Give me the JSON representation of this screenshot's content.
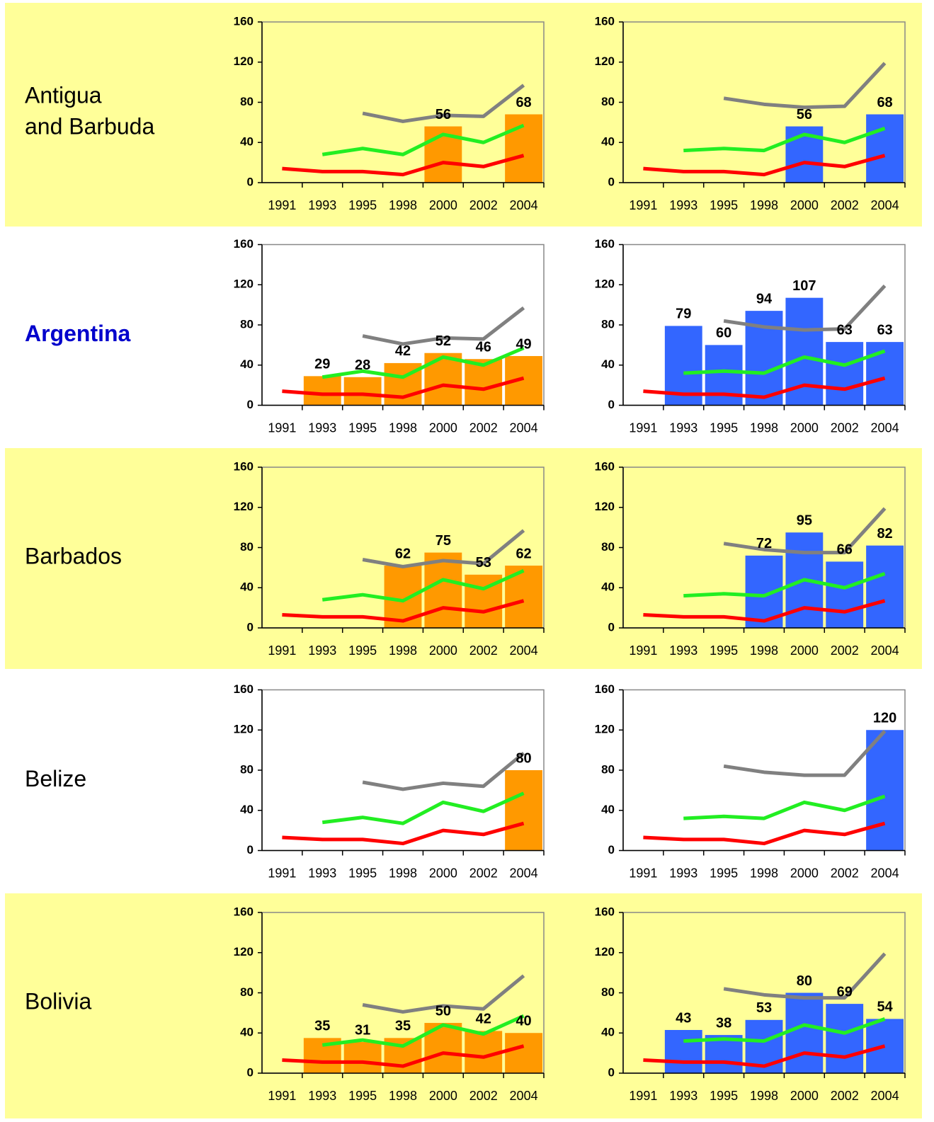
{
  "rows": [
    {
      "label": [
        "Antigua",
        "and Barbuda"
      ],
      "color": "#000000"
    },
    {
      "label": [
        "Argentina"
      ],
      "color": "#0000cc"
    },
    {
      "label": [
        "Barbados"
      ],
      "color": "#000000"
    },
    {
      "label": [
        "Belize"
      ],
      "color": "#000000"
    },
    {
      "label": [
        "Bolivia"
      ],
      "color": "#000000"
    }
  ],
  "chart_data": [
    {
      "type": "bar",
      "categories": [
        "1991",
        "1993",
        "1995",
        "1998",
        "2000",
        "2002",
        "2004"
      ],
      "values": [
        null,
        null,
        null,
        null,
        56,
        null,
        68
      ],
      "color": "#ff9900",
      "ylim": [
        0,
        160
      ],
      "yticks": [
        0,
        40,
        80,
        120,
        160
      ],
      "series": [
        {
          "color": "#808080",
          "values": [
            null,
            null,
            69,
            61,
            67,
            66,
            97
          ]
        },
        {
          "color": "#22ee22",
          "values": [
            null,
            28,
            34,
            28,
            48,
            40,
            57
          ]
        },
        {
          "color": "#ff0000",
          "values": [
            14,
            11,
            11,
            8,
            20,
            16,
            27
          ]
        }
      ]
    },
    {
      "type": "bar",
      "categories": [
        "1991",
        "1993",
        "1995",
        "1998",
        "2000",
        "2002",
        "2004"
      ],
      "values": [
        null,
        null,
        null,
        null,
        56,
        null,
        68
      ],
      "color": "#3366ff",
      "ylim": [
        0,
        160
      ],
      "yticks": [
        0,
        40,
        80,
        120,
        160
      ],
      "series": [
        {
          "color": "#808080",
          "values": [
            null,
            null,
            84,
            78,
            75,
            76,
            119
          ]
        },
        {
          "color": "#22ee22",
          "values": [
            null,
            32,
            34,
            32,
            48,
            40,
            54
          ]
        },
        {
          "color": "#ff0000",
          "values": [
            14,
            11,
            11,
            8,
            20,
            16,
            27
          ]
        }
      ]
    },
    {
      "type": "bar",
      "categories": [
        "1991",
        "1993",
        "1995",
        "1998",
        "2000",
        "2002",
        "2004"
      ],
      "values": [
        null,
        29,
        28,
        42,
        52,
        46,
        49
      ],
      "color": "#ff9900",
      "ylim": [
        0,
        160
      ],
      "yticks": [
        0,
        40,
        80,
        120,
        160
      ],
      "series": [
        {
          "color": "#808080",
          "values": [
            null,
            null,
            69,
            61,
            67,
            66,
            97
          ]
        },
        {
          "color": "#22ee22",
          "values": [
            null,
            28,
            34,
            28,
            48,
            40,
            57
          ]
        },
        {
          "color": "#ff0000",
          "values": [
            14,
            11,
            11,
            8,
            20,
            16,
            27
          ]
        }
      ]
    },
    {
      "type": "bar",
      "categories": [
        "1991",
        "1993",
        "1995",
        "1998",
        "2000",
        "2002",
        "2004"
      ],
      "values": [
        null,
        79,
        60,
        94,
        107,
        63,
        63
      ],
      "color": "#3366ff",
      "ylim": [
        0,
        160
      ],
      "yticks": [
        0,
        40,
        80,
        120,
        160
      ],
      "series": [
        {
          "color": "#808080",
          "values": [
            null,
            null,
            84,
            78,
            75,
            76,
            119
          ]
        },
        {
          "color": "#22ee22",
          "values": [
            null,
            32,
            34,
            32,
            48,
            40,
            54
          ]
        },
        {
          "color": "#ff0000",
          "values": [
            14,
            11,
            11,
            8,
            20,
            16,
            27
          ]
        }
      ]
    },
    {
      "type": "bar",
      "categories": [
        "1991",
        "1993",
        "1995",
        "1998",
        "2000",
        "2002",
        "2004"
      ],
      "values": [
        null,
        null,
        null,
        62,
        75,
        53,
        62
      ],
      "color": "#ff9900",
      "ylim": [
        0,
        160
      ],
      "yticks": [
        0,
        40,
        80,
        120,
        160
      ],
      "series": [
        {
          "color": "#808080",
          "values": [
            null,
            null,
            68,
            61,
            67,
            64,
            97
          ]
        },
        {
          "color": "#22ee22",
          "values": [
            null,
            28,
            33,
            27,
            48,
            39,
            57
          ]
        },
        {
          "color": "#ff0000",
          "values": [
            13,
            11,
            11,
            7,
            20,
            16,
            27
          ]
        }
      ]
    },
    {
      "type": "bar",
      "categories": [
        "1991",
        "1993",
        "1995",
        "1998",
        "2000",
        "2002",
        "2004"
      ],
      "values": [
        null,
        null,
        null,
        72,
        95,
        66,
        82
      ],
      "color": "#3366ff",
      "ylim": [
        0,
        160
      ],
      "yticks": [
        0,
        40,
        80,
        120,
        160
      ],
      "series": [
        {
          "color": "#808080",
          "values": [
            null,
            null,
            84,
            78,
            75,
            75,
            119
          ]
        },
        {
          "color": "#22ee22",
          "values": [
            null,
            32,
            34,
            32,
            48,
            40,
            54
          ]
        },
        {
          "color": "#ff0000",
          "values": [
            13,
            11,
            11,
            7,
            20,
            16,
            27
          ]
        }
      ]
    },
    {
      "type": "bar",
      "categories": [
        "1991",
        "1993",
        "1995",
        "1998",
        "2000",
        "2002",
        "2004"
      ],
      "values": [
        null,
        null,
        null,
        null,
        null,
        null,
        80
      ],
      "color": "#ff9900",
      "ylim": [
        0,
        160
      ],
      "yticks": [
        0,
        40,
        80,
        120,
        160
      ],
      "series": [
        {
          "color": "#808080",
          "values": [
            null,
            null,
            68,
            61,
            67,
            64,
            97
          ]
        },
        {
          "color": "#22ee22",
          "values": [
            null,
            28,
            33,
            27,
            48,
            39,
            57
          ]
        },
        {
          "color": "#ff0000",
          "values": [
            13,
            11,
            11,
            7,
            20,
            16,
            27
          ]
        }
      ]
    },
    {
      "type": "bar",
      "categories": [
        "1991",
        "1993",
        "1995",
        "1998",
        "2000",
        "2002",
        "2004"
      ],
      "values": [
        null,
        null,
        null,
        null,
        null,
        null,
        120
      ],
      "color": "#3366ff",
      "ylim": [
        0,
        160
      ],
      "yticks": [
        0,
        40,
        80,
        120,
        160
      ],
      "series": [
        {
          "color": "#808080",
          "values": [
            null,
            null,
            84,
            78,
            75,
            75,
            119
          ]
        },
        {
          "color": "#22ee22",
          "values": [
            null,
            32,
            34,
            32,
            48,
            40,
            54
          ]
        },
        {
          "color": "#ff0000",
          "values": [
            13,
            11,
            11,
            7,
            20,
            16,
            27
          ]
        }
      ]
    },
    {
      "type": "bar",
      "categories": [
        "1991",
        "1993",
        "1995",
        "1998",
        "2000",
        "2002",
        "2004"
      ],
      "values": [
        null,
        35,
        31,
        35,
        50,
        42,
        40
      ],
      "color": "#ff9900",
      "ylim": [
        0,
        160
      ],
      "yticks": [
        0,
        40,
        80,
        120,
        160
      ],
      "series": [
        {
          "color": "#808080",
          "values": [
            null,
            null,
            68,
            61,
            67,
            64,
            97
          ]
        },
        {
          "color": "#22ee22",
          "values": [
            null,
            28,
            33,
            27,
            48,
            39,
            57
          ]
        },
        {
          "color": "#ff0000",
          "values": [
            13,
            11,
            11,
            7,
            20,
            16,
            27
          ]
        }
      ]
    },
    {
      "type": "bar",
      "categories": [
        "1991",
        "1993",
        "1995",
        "1998",
        "2000",
        "2002",
        "2004"
      ],
      "values": [
        null,
        43,
        38,
        53,
        80,
        69,
        54
      ],
      "color": "#3366ff",
      "ylim": [
        0,
        160
      ],
      "yticks": [
        0,
        40,
        80,
        120,
        160
      ],
      "series": [
        {
          "color": "#808080",
          "values": [
            null,
            null,
            84,
            78,
            75,
            75,
            119
          ]
        },
        {
          "color": "#22ee22",
          "values": [
            null,
            32,
            34,
            32,
            48,
            40,
            54
          ]
        },
        {
          "color": "#ff0000",
          "values": [
            13,
            11,
            11,
            7,
            20,
            16,
            27
          ]
        }
      ]
    }
  ]
}
